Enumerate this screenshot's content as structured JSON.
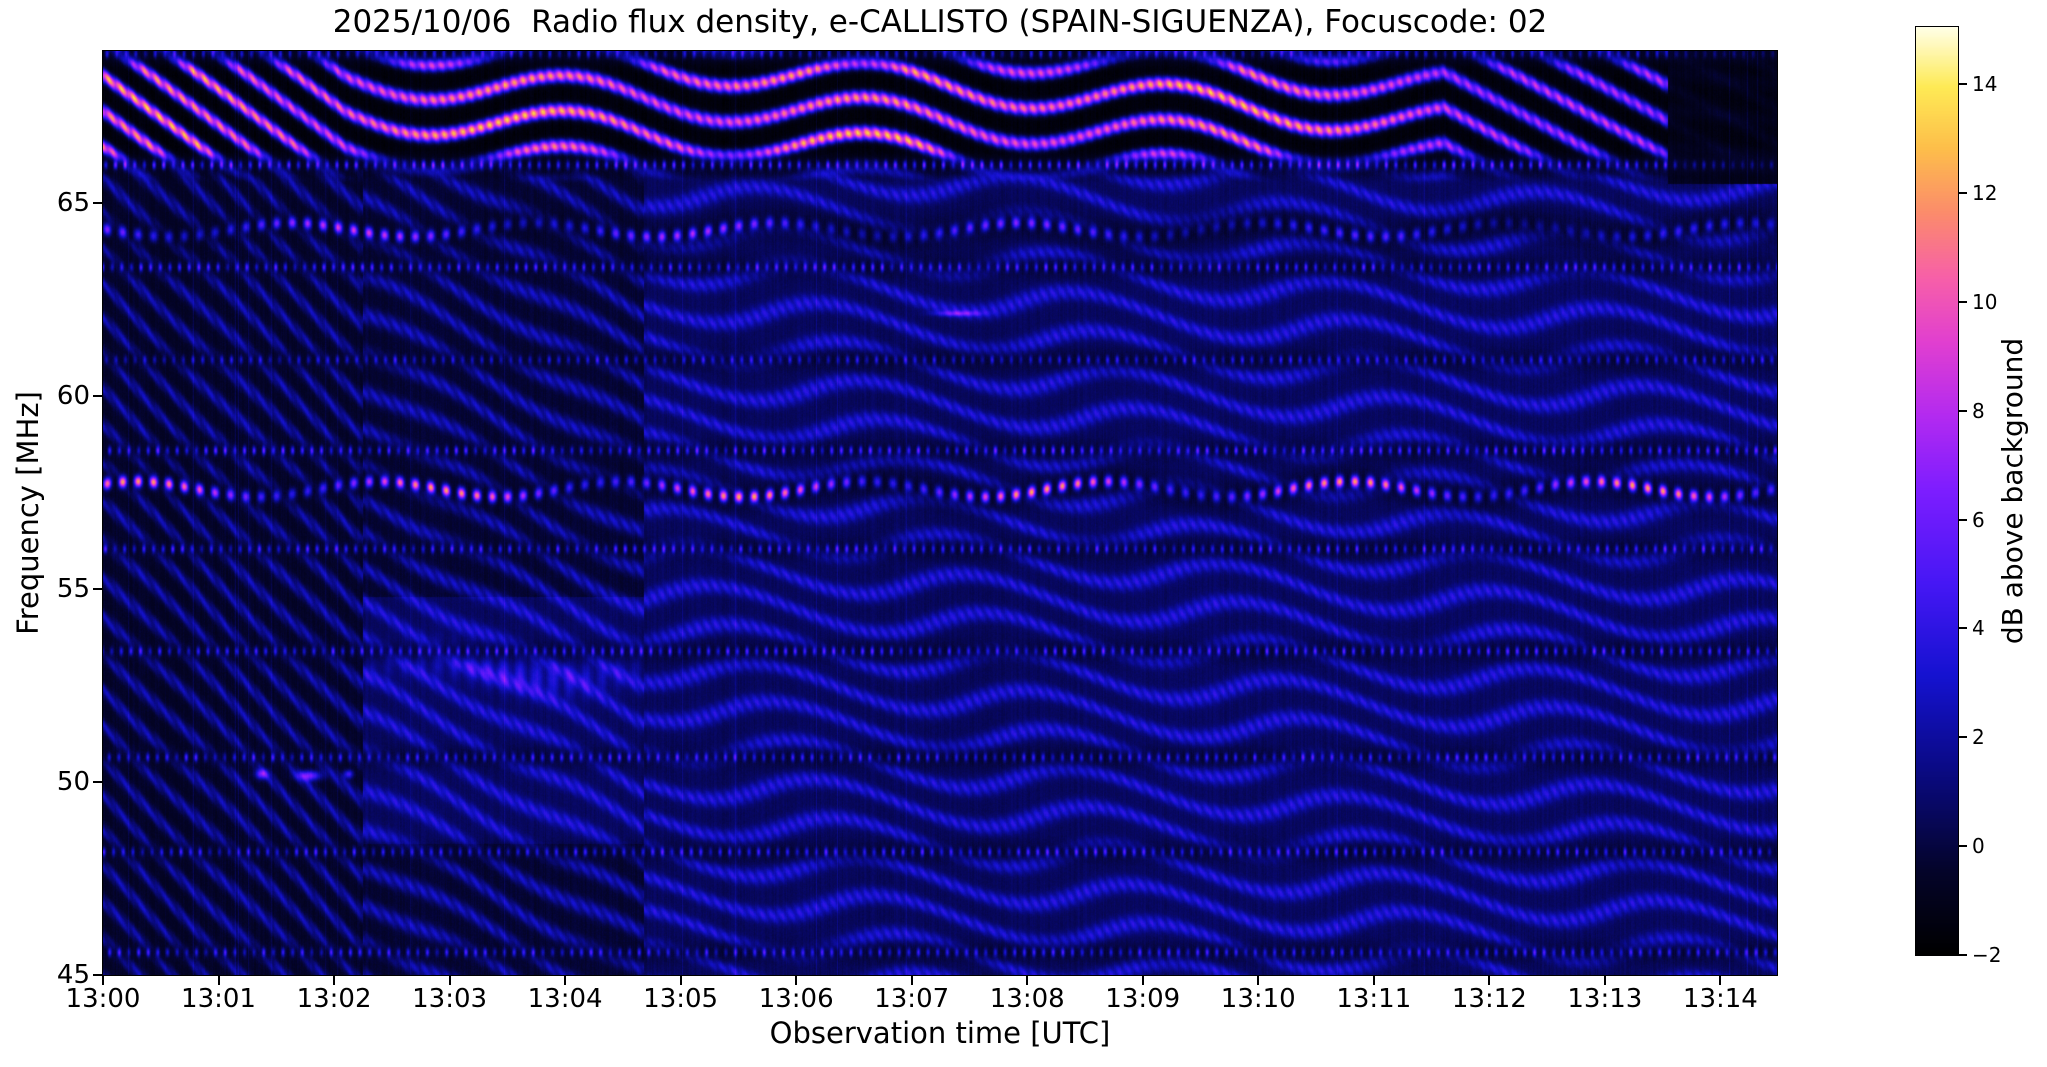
{
  "title": "2025/10/06  Radio flux density, e-CALLISTO (SPAIN-SIGUENZA), Focuscode: 02",
  "axes": {
    "x_label": "Observation time [UTC]",
    "y_label": "Frequency [MHz]",
    "x_tick_labels": [
      "13:00",
      "13:01",
      "13:02",
      "13:03",
      "13:04",
      "13:05",
      "13:06",
      "13:07",
      "13:08",
      "13:09",
      "13:10",
      "13:11",
      "13:12",
      "13:13",
      "13:14"
    ],
    "y_tick_labels": [
      "65",
      "60",
      "55",
      "50",
      "45"
    ]
  },
  "colorbar": {
    "label": "dB above background",
    "tick_labels": [
      "14",
      "12",
      "10",
      "8",
      "6",
      "4",
      "2",
      "0",
      "−2"
    ],
    "tick_values": [
      14,
      12,
      10,
      8,
      6,
      4,
      2,
      0,
      -2
    ]
  },
  "chart_data": {
    "type": "heatmap",
    "title": "2025/10/06  Radio flux density, e-CALLISTO (SPAIN-SIGUENZA), Focuscode: 02",
    "x": {
      "label": "Observation time [UTC]",
      "start_utc": "13:00",
      "end_utc": "13:14:30",
      "duration_min": 14.49,
      "tick_interval_min": 1
    },
    "y": {
      "label": "Frequency [MHz]",
      "min_mhz": 45.0,
      "max_mhz": 68.94,
      "tick_values": [
        65,
        60,
        55,
        50,
        45
      ]
    },
    "z": {
      "label": "dB above background",
      "min_db": -2,
      "max_db": 15.05,
      "colorbar_tick_values": [
        14,
        12,
        10,
        8,
        6,
        4,
        2,
        0,
        -2
      ]
    },
    "features": [
      "Bright orange/yellow diagonal interference stripes between ~66 and 68.9 MHz across most of the record, turning pink/magenta after ~13:11 and going dark after ~13:13:30",
      "Dashed horizontal RFI tick rows (blue/purple) near 68.9, 66.0, 63.35, 60.95, 58.6, 56.05, 53.4, 50.65, 48.2 and 45.6 MHz",
      "Strong dashed magenta/orange carrier near 57.6 MHz during the whole interval, riding on a black suppressed band",
      "Dashed magenta carrier near 64.3 MHz, strongest before ~13:05, fading to faint blue dashes later",
      "Wavy blue interference fringes (~0.95 MHz spacing) over the whole band; steep diagonals before 13:02, brighter and nearly horizontal after ~13:04:40",
      "Enhanced blue patch with pink ridge near 52-53.5 MHz between ~13:02:15 and ~13:04:40",
      "Three compact pink bursts near 50.2 MHz between ~13:01:20 and ~13:02:10",
      "Background discontinuity seams near 13:02:15, 13:04:40, 13:08:25 and 13:13:30",
      "Dark (black) region above ~65.4 MHz after ~13:13:30"
    ],
    "render": {
      "t_max_min": 14.49,
      "f_top_mhz": 68.94,
      "f_bottom_mhz": 45.0,
      "fringe": {
        "spacing_mhz": 0.95,
        "amp_db": 3.4,
        "micro_dashes_per_min": 12,
        "regions": [
          {
            "t0": 0.0,
            "t1": 2.25,
            "drift_mhz_per_min": 3.0,
            "base_db": -0.55,
            "undulation_mhz": 0.12,
            "undulation_period_min": 1.5
          },
          {
            "t0": 2.25,
            "t1": 4.68,
            "drift_mhz_per_min": 1.6,
            "base_db": -0.3,
            "undulation_mhz": 0.15,
            "undulation_period_min": 1.5
          },
          {
            "t0": 4.68,
            "t1": 14.49,
            "drift_mhz_per_min": 0.3,
            "base_db": 0.55,
            "undulation_mhz": 0.4,
            "undulation_period_min": 2.25
          }
        ],
        "late_extra_base_db": 0.08,
        "late_extra_from_min": 8.43
      },
      "top_band": {
        "f_start_mhz": 65.5,
        "blend_full_mhz": 66.25,
        "stripe_spacing_mhz": 0.92,
        "peak_db": 13.2,
        "floor_db": -1.55,
        "early_drift_mhz_per_min": 2.2,
        "early_until_min": 2.1,
        "mid_slope_mhz_per_min": 0.22,
        "mid_undulation_mhz": 0.45,
        "mid_undulation_period_min": 2.6,
        "late_drift_mhz_per_min": 1.6,
        "late_from_min": 11.6,
        "fade_from_min": 10.8,
        "fade_to_min": 12.5,
        "fade_factor": 0.28,
        "dark_corner": {
          "t_from_min": 13.54,
          "f_from_mhz": 65.4
        }
      },
      "dashed_fences": [
        {
          "f_mhz": 68.88,
          "amp_db": 3.5
        },
        {
          "f_mhz": 66.0,
          "amp_db": 5.5
        },
        {
          "f_mhz": 63.35,
          "amp_db": 4.8
        },
        {
          "f_mhz": 60.95,
          "amp_db": 3.6
        },
        {
          "f_mhz": 58.6,
          "amp_db": 5.0
        },
        {
          "f_mhz": 56.05,
          "amp_db": 4.6
        },
        {
          "f_mhz": 53.4,
          "amp_db": 4.6
        },
        {
          "f_mhz": 50.65,
          "amp_db": 4.4
        },
        {
          "f_mhz": 48.2,
          "amp_db": 4.4
        },
        {
          "f_mhz": 45.6,
          "amp_db": 4.2
        }
      ],
      "bright_lines": [
        {
          "f_mhz": 64.32,
          "amp_db": 8.3,
          "amp_slope_db_per_min": -0.33,
          "segment_period_min": 2.9,
          "wobble_mhz": 0.18,
          "seed": 3
        },
        {
          "f_mhz": 57.6,
          "amp_db": 10.2,
          "amp_slope_db_per_min": 0.0,
          "segment_period_min": 2.6,
          "wobble_mhz": 0.2,
          "seed": 7
        }
      ],
      "enhanced_patch": {
        "t0_min": 2.25,
        "t1_min": 4.68,
        "f0_mhz": 48.4,
        "f1_mhz": 54.8,
        "boost_db": 0.9,
        "ridge_f_mhz": 52.95,
        "ridge_amp_db": 3.4,
        "ridge_sigma_mhz": 0.5,
        "ridge_center_min": 3.5,
        "ridge_sigma_min": 1.15
      },
      "point_sources": [
        {
          "t_min": 1.37,
          "f_mhz": 50.22,
          "amp_db": 6.5,
          "sigma_t_min": 0.055,
          "sigma_f_mhz": 0.13
        },
        {
          "t_min": 1.78,
          "f_mhz": 50.18,
          "amp_db": 7.0,
          "sigma_t_min": 0.1,
          "sigma_f_mhz": 0.13
        },
        {
          "t_min": 2.12,
          "f_mhz": 50.22,
          "amp_db": 5.5,
          "sigma_t_min": 0.04,
          "sigma_f_mhz": 0.11
        },
        {
          "t_min": 7.4,
          "f_mhz": 62.15,
          "amp_db": 4.2,
          "sigma_t_min": 0.2,
          "sigma_f_mhz": 0.07
        }
      ],
      "seam_times_min": [
        2.25,
        4.68,
        8.43,
        13.54
      ],
      "colormap_stops": [
        {
          "pos": 0.0,
          "hex": "#000000"
        },
        {
          "pos": 0.09,
          "hex": "#04042a"
        },
        {
          "pos": 0.2,
          "hex": "#0a0a85"
        },
        {
          "pos": 0.3,
          "hex": "#1512d0"
        },
        {
          "pos": 0.4,
          "hex": "#4617f5"
        },
        {
          "pos": 0.5,
          "hex": "#7d1dff"
        },
        {
          "pos": 0.58,
          "hex": "#b32af0"
        },
        {
          "pos": 0.66,
          "hex": "#e13fd0"
        },
        {
          "pos": 0.73,
          "hex": "#f760a8"
        },
        {
          "pos": 0.8,
          "hex": "#fb8c6b"
        },
        {
          "pos": 0.87,
          "hex": "#fdbf4a"
        },
        {
          "pos": 0.935,
          "hex": "#feea55"
        },
        {
          "pos": 1.0,
          "hex": "#ffffe8"
        }
      ]
    }
  }
}
